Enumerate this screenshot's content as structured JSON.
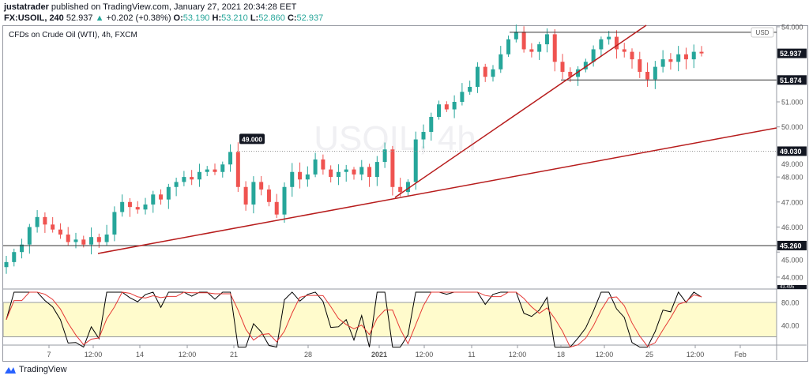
{
  "header": {
    "publisher": "justatrader",
    "published_text": "published on TradingView.com, January 27, 2021 20:34:28 EET",
    "symbol": "FX:USOIL, 240",
    "last": "52.937",
    "change": "+0.202 (+0.38%)",
    "o_label": "O:",
    "o": "53.190",
    "h_label": "H:",
    "h": "53.210",
    "l_label": "L:",
    "l": "52.860",
    "c_label": "C:",
    "c": "52.937"
  },
  "subtitle": "CFDs on Crude Oil (WTI), 4h, FXCM",
  "watermark": "USOIL, 4h",
  "brand": "TradingView",
  "colors": {
    "up": "#26a69a",
    "down": "#ef5350",
    "trendline": "#b71c1c",
    "stoch_k": "#000000",
    "stoch_d": "#e53935",
    "band": "#fffbcc"
  },
  "chart_data": {
    "type": "candlestick",
    "ylim": [
      43.4,
      54.1
    ],
    "y_ticks": [
      "44.000",
      "45.000",
      "46.000",
      "47.000",
      "48.000",
      "49.000",
      "50.000",
      "51.000",
      "54.000"
    ],
    "x_ticks": [
      "7",
      "12:00",
      "14",
      "12:00",
      "21",
      "28",
      "2021",
      "12:00",
      "11",
      "12:00",
      "18",
      "12:00",
      "25",
      "12:00",
      "Feb"
    ],
    "currency": "USD",
    "price_labels": {
      "last": "52.937",
      "level_top": "51.874",
      "level_mid": "49.030",
      "level_low": "45.260",
      "pane_edge": "43.495"
    },
    "levels": [
      53.78,
      51.874,
      49.03,
      45.26
    ],
    "annotation": {
      "text": "49.000",
      "price": 49.0
    },
    "closes": [
      44.6,
      45.0,
      45.3,
      46.0,
      46.4,
      46.1,
      45.9,
      45.7,
      45.4,
      45.5,
      45.3,
      45.6,
      45.4,
      45.7,
      46.6,
      47.0,
      46.8,
      46.7,
      46.9,
      47.3,
      47.1,
      47.6,
      47.8,
      48.0,
      47.9,
      48.2,
      48.3,
      48.2,
      48.5,
      49.0,
      47.6,
      46.9,
      47.8,
      47.5,
      47.0,
      46.5,
      47.6,
      48.2,
      47.9,
      48.1,
      48.7,
      48.3,
      48.0,
      48.2,
      48.3,
      48.1,
      48.4,
      48.0,
      48.6,
      49.1,
      47.6,
      47.4,
      47.8,
      49.5,
      49.8,
      50.4,
      50.9,
      50.7,
      51.0,
      51.4,
      51.6,
      52.4,
      52.0,
      52.3,
      52.9,
      53.5,
      53.8,
      53.1,
      53.0,
      53.3,
      53.7,
      52.6,
      52.2,
      52.0,
      52.3,
      52.6,
      53.1,
      53.5,
      53.6,
      53.1,
      53.0,
      52.7,
      52.2,
      51.9,
      52.4,
      52.7,
      52.6,
      52.9,
      52.7,
      53.0,
      52.937
    ],
    "indicator": {
      "type": "stochastic",
      "y_ticks": [
        "80.00",
        "40.00"
      ],
      "band": [
        20,
        80
      ]
    }
  }
}
